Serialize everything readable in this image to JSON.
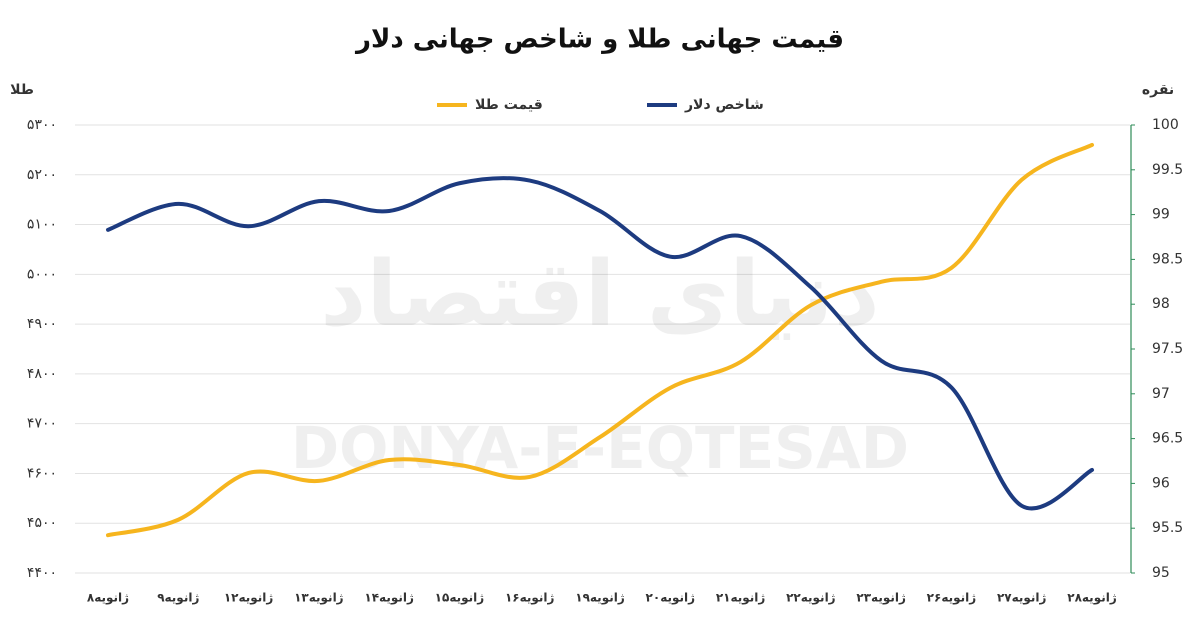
{
  "chart_data": {
    "type": "line",
    "title": "قیمت جهانی طلا و شاخص جهانی دلار",
    "ylabel": "طلا",
    "y2label": "نقره",
    "watermark": [
      "دنیای اقتصاد",
      "DONYA-E-EQTESAD"
    ],
    "categories": [
      "۸ژانویه",
      "۹ژانویه",
      "۱۲ژانویه",
      "۱۳ژانویه",
      "۱۴ژانویه",
      "۱۵ژانویه",
      "۱۶ژانویه",
      "۱۹ژانویه",
      "۲۰ژانویه",
      "۲۱ژانویه",
      "۲۲ژانویه",
      "۲۳ژانویه",
      "۲۶ژانویه",
      "۲۷ژانویه",
      "۲۸ژانویه"
    ],
    "series": [
      {
        "name": "قیمت طلا",
        "color": "#f6b51e",
        "values": [
          4476,
          4507,
          4601,
          4585,
          4627,
          4617,
          4593,
          4673,
          4772,
          4824,
          4938,
          4985,
          5013,
          5190,
          5260
        ]
      },
      {
        "name": "شاخص دلار",
        "color": "#1d3b80",
        "axis": "y2",
        "values": [
          98.83,
          99.12,
          98.87,
          99.15,
          99.04,
          99.35,
          99.38,
          99.04,
          98.53,
          98.76,
          98.19,
          97.37,
          97.07,
          95.75,
          96.15
        ]
      }
    ],
    "ylim": [
      4400,
      5300
    ],
    "yticks": [
      {
        "value": 4400,
        "label": "۴۴۰۰"
      },
      {
        "value": 4500,
        "label": "۴۵۰۰"
      },
      {
        "value": 4600,
        "label": "۴۶۰۰"
      },
      {
        "value": 4700,
        "label": "۴۷۰۰"
      },
      {
        "value": 4800,
        "label": "۴۸۰۰"
      },
      {
        "value": 4900,
        "label": "۴۹۰۰"
      },
      {
        "value": 5000,
        "label": "۵۰۰۰"
      },
      {
        "value": 5100,
        "label": "۵۱۰۰"
      },
      {
        "value": 5200,
        "label": "۵۲۰۰"
      },
      {
        "value": 5300,
        "label": "۵۳۰۰"
      }
    ],
    "y2lim": [
      95,
      100
    ],
    "y2ticks": [
      95,
      95.5,
      96,
      96.5,
      97,
      97.5,
      98,
      98.5,
      99,
      99.5,
      100
    ],
    "grid": true
  }
}
